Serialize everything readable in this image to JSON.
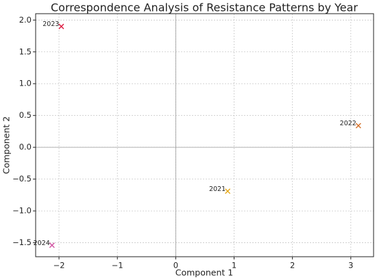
{
  "chart_data": {
    "type": "scatter",
    "title": "Correspondence Analysis of Resistance Patterns by Year",
    "xlabel": "Component 1",
    "ylabel": "Component 2",
    "labels": [
      "2021",
      "2022",
      "2023",
      "2024"
    ],
    "x": [
      0.89,
      3.13,
      -1.96,
      -2.12
    ],
    "values": [
      -0.69,
      0.34,
      1.9,
      -1.54
    ],
    "colors": [
      "#e6a817",
      "#d2691e",
      "#dc143c",
      "#d04fa0"
    ],
    "marker": "x",
    "xlim": [
      -2.4,
      3.39
    ],
    "xticks": [
      {
        "value": -2,
        "label": "−2"
      },
      {
        "value": -1,
        "label": "−1"
      },
      0,
      1,
      2,
      3
    ],
    "ylim": [
      -1.72,
      2.1
    ],
    "yticks": [
      {
        "value": -1.5,
        "label": "−1.5"
      },
      {
        "value": -1,
        "label": "−1.0"
      },
      {
        "value": -0.5,
        "label": "−0.5"
      },
      {
        "value": 0,
        "label": "0.0"
      },
      {
        "value": 0.5,
        "label": "0.5"
      },
      {
        "value": 1,
        "label": "1.0"
      },
      {
        "value": 1.5,
        "label": "1.5"
      },
      {
        "value": 2,
        "label": "2.0"
      }
    ],
    "grid": true,
    "zero_lines": true
  }
}
